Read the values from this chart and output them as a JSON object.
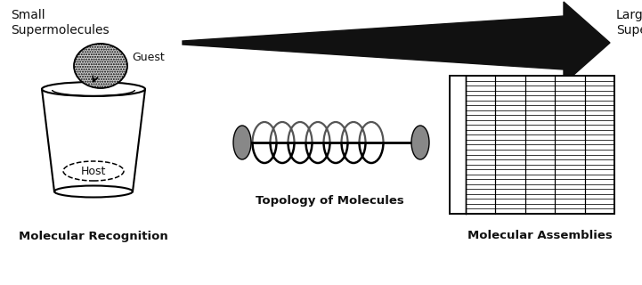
{
  "title_small": "Small\nSupermolecules",
  "title_large": "Large\nSupermolecules",
  "label_recognition": "Molecular Recognition",
  "label_topology": "Topology of Molecules",
  "label_assemblies": "Molecular Assemblies",
  "label_guest": "Guest",
  "label_host": "Host",
  "arrow_color": "#111111",
  "text_color": "#111111",
  "figure_width": 7.21,
  "figure_height": 3.2,
  "dpi": 100
}
